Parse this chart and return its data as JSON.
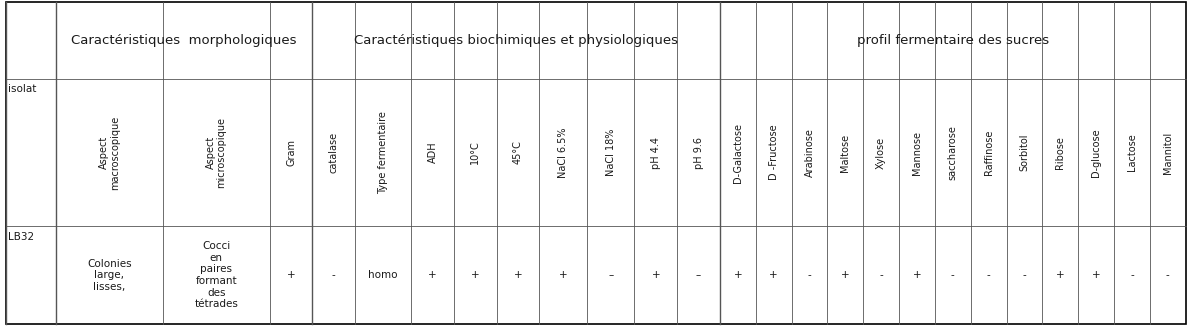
{
  "group_headers": [
    {
      "text": "Caractéristiques  morphologiques"
    },
    {
      "text": "Caractéristiques biochimiques et physiologiques"
    },
    {
      "text": "profil fermentaire des sucres"
    }
  ],
  "col_headers": [
    "Aspect\nmacroscopique",
    "Aspect\nmicroscopique",
    "Gram",
    "catalase",
    "Type fermentaire",
    "ADH",
    "10°C",
    "45°C",
    "NaCl 6.5%",
    "NaCl 18%",
    "pH 4.4",
    "pH 9.6",
    "D-Galactose",
    "D -Fructose",
    "Arabinose",
    "Maltose",
    "Xylose",
    "Mannose",
    "saccharose",
    "Raffinose",
    "Sorbitol",
    "Ribose",
    "D-glucose",
    "Lactose",
    "Mannitol"
  ],
  "row_label": "LB32",
  "row_data": [
    "Colonies\nlarge,\nlisses,",
    "Cocci\nen\npaires\nformant\ndes\ntétrades",
    "+",
    "-",
    "homo",
    "+",
    "+",
    "+",
    "+",
    "–",
    "+",
    "–",
    "+",
    "+",
    "-",
    "+",
    "-",
    "+",
    "-",
    "-",
    "-",
    "+",
    "+",
    "-",
    "-"
  ],
  "isolat_label": "isolat",
  "bg_color": "#ffffff",
  "text_color": "#1a1a1a",
  "border_color": "#555555",
  "font_size": 7.5,
  "header_font_size": 9.5,
  "col_header_font_size": 7.0,
  "morpho_ncols": 3,
  "biochem_ncols": 9,
  "sugar_ncols": 13
}
